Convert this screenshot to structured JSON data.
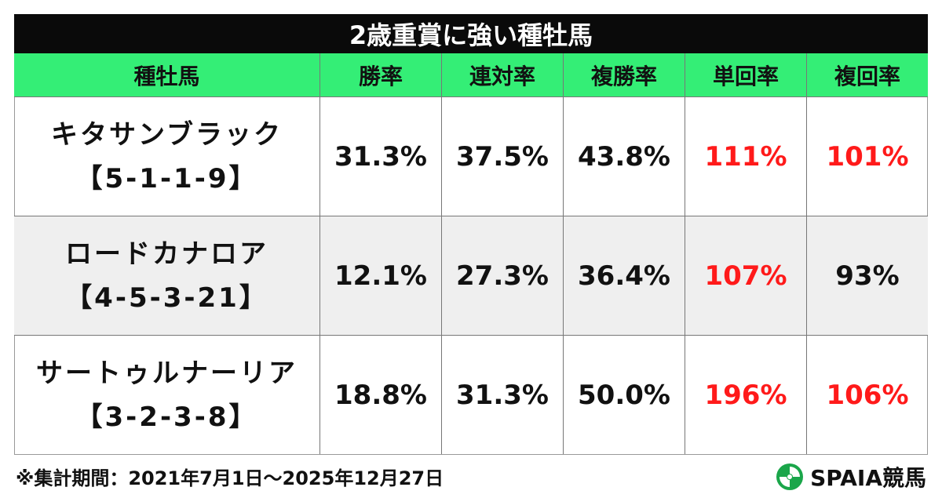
{
  "header": {
    "title": "2歳重賞に強い種牡馬"
  },
  "table": {
    "columns": [
      "種牡馬",
      "勝率",
      "連対率",
      "複勝率",
      "単回率",
      "複回率"
    ],
    "rows": [
      {
        "name": "キタサンブラック",
        "record": "【5-1-1-9】",
        "cells": [
          {
            "text": "31.3%",
            "color": "#111111"
          },
          {
            "text": "37.5%",
            "color": "#111111"
          },
          {
            "text": "43.8%",
            "color": "#111111"
          },
          {
            "text": "111%",
            "color": "#ff1a1a"
          },
          {
            "text": "101%",
            "color": "#ff1a1a"
          }
        ]
      },
      {
        "name": "ロードカナロア",
        "record": "【4-5-3-21】",
        "cells": [
          {
            "text": "12.1%",
            "color": "#111111"
          },
          {
            "text": "27.3%",
            "color": "#111111"
          },
          {
            "text": "36.4%",
            "color": "#111111"
          },
          {
            "text": "107%",
            "color": "#ff1a1a"
          },
          {
            "text": "93%",
            "color": "#111111"
          }
        ]
      },
      {
        "name": "サートゥルナーリア",
        "record": "【3-2-3-8】",
        "cells": [
          {
            "text": "18.8%",
            "color": "#111111"
          },
          {
            "text": "31.3%",
            "color": "#111111"
          },
          {
            "text": "50.0%",
            "color": "#111111"
          },
          {
            "text": "196%",
            "color": "#ff1a1a"
          },
          {
            "text": "106%",
            "color": "#ff1a1a"
          }
        ]
      }
    ]
  },
  "footer": {
    "note": "※集計期間：2021年7月1日～2025年12月27日",
    "logo": "SPAIA競馬"
  }
}
